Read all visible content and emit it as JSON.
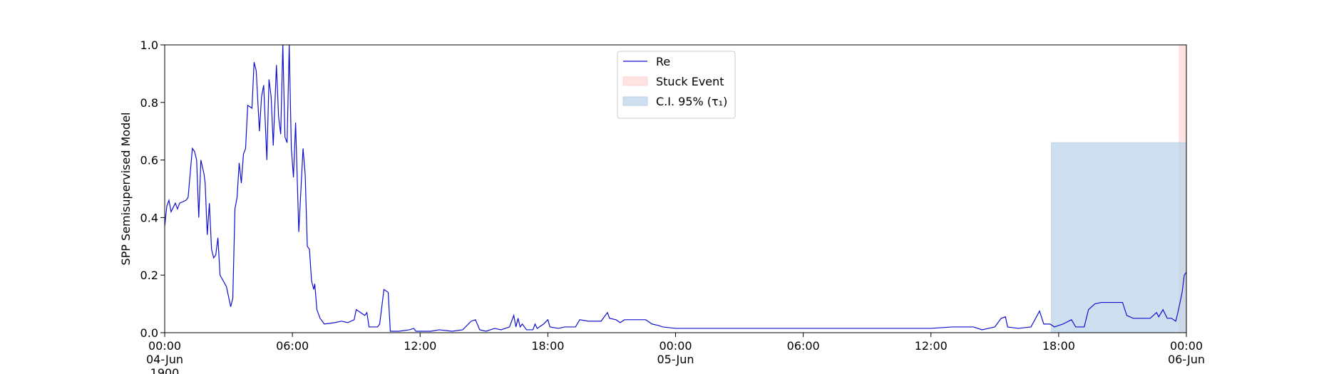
{
  "chart_data": {
    "type": "line",
    "ylabel": "SPP Semisupervised Model",
    "xlim": [
      0,
      48
    ],
    "ylim": [
      0,
      1
    ],
    "xticks": [
      {
        "value": 0,
        "label": "00:00\n04-Jun\n1900"
      },
      {
        "value": 6,
        "label": "06:00"
      },
      {
        "value": 12,
        "label": "12:00"
      },
      {
        "value": 18,
        "label": "18:00"
      },
      {
        "value": 24,
        "label": "00:00\n05-Jun"
      },
      {
        "value": 30,
        "label": "06:00"
      },
      {
        "value": 36,
        "label": "12:00"
      },
      {
        "value": 42,
        "label": "18:00"
      },
      {
        "value": 48,
        "label": "00:00\n06-Jun"
      }
    ],
    "yticks": [
      {
        "value": 0,
        "label": "0.0"
      },
      {
        "value": 0.2,
        "label": "0.2"
      },
      {
        "value": 0.4,
        "label": "0.4"
      },
      {
        "value": 0.6,
        "label": "0.6"
      },
      {
        "value": 0.8,
        "label": "0.8"
      },
      {
        "value": 1,
        "label": "1.0"
      }
    ],
    "legend": "upper center",
    "series": [
      {
        "name": "Re",
        "color": "#1010cc",
        "x": [
          0,
          0.1,
          0.2,
          0.3,
          0.5,
          0.6,
          0.7,
          1.0,
          1.1,
          1.3,
          1.4,
          1.5,
          1.6,
          1.7,
          1.85,
          1.9,
          2.0,
          2.1,
          2.2,
          2.3,
          2.4,
          2.5,
          2.6,
          2.9,
          3.1,
          3.2,
          3.3,
          3.4,
          3.5,
          3.6,
          3.7,
          3.8,
          3.9,
          4.1,
          4.2,
          4.3,
          4.45,
          4.55,
          4.65,
          4.8,
          4.9,
          5.0,
          5.1,
          5.25,
          5.35,
          5.45,
          5.55,
          5.65,
          5.75,
          5.85,
          5.95,
          6.05,
          6.15,
          6.3,
          6.45,
          6.5,
          6.6,
          6.7,
          6.8,
          6.9,
          7.0,
          7.05,
          7.15,
          7.3,
          7.5,
          8.0,
          8.3,
          8.6,
          8.9,
          9.0,
          9.3,
          9.4,
          9.5,
          9.6,
          10.0,
          10.1,
          10.3,
          10.5,
          10.6,
          11.0,
          11.5,
          11.7,
          11.8,
          12.5,
          12.9,
          13.5,
          14.0,
          14.4,
          14.6,
          14.8,
          15.1,
          15.5,
          15.8,
          16.2,
          16.4,
          16.5,
          16.6,
          16.7,
          16.8,
          17.0,
          17.3,
          17.4,
          17.5,
          17.8,
          18.0,
          18.1,
          18.5,
          18.8,
          19.3,
          19.5,
          19.9,
          20.5,
          20.8,
          20.9,
          21.2,
          21.4,
          21.6,
          22.0,
          22.6,
          22.9,
          23.2,
          23.4,
          24.0,
          30.0,
          36.0,
          37.0,
          38.0,
          38.4,
          38.7,
          39.0,
          39.3,
          39.5,
          39.6,
          40.1,
          40.7,
          41.1,
          41.3,
          41.6,
          41.8,
          42.2,
          42.6,
          42.8,
          43.2,
          43.4,
          43.7,
          44.0,
          45.0,
          45.2,
          45.5,
          46.3,
          46.6,
          46.7,
          46.9,
          47.1,
          47.3,
          47.5,
          47.6,
          47.8,
          47.9,
          48.0
        ],
        "values": [
          0.37,
          0.44,
          0.46,
          0.42,
          0.45,
          0.43,
          0.45,
          0.46,
          0.47,
          0.64,
          0.63,
          0.6,
          0.4,
          0.6,
          0.55,
          0.52,
          0.34,
          0.45,
          0.29,
          0.26,
          0.27,
          0.33,
          0.2,
          0.16,
          0.09,
          0.12,
          0.43,
          0.47,
          0.59,
          0.52,
          0.62,
          0.64,
          0.79,
          0.78,
          0.94,
          0.91,
          0.7,
          0.82,
          0.86,
          0.6,
          0.88,
          0.82,
          0.65,
          0.93,
          0.75,
          0.69,
          1.0,
          0.68,
          0.66,
          1.0,
          0.64,
          0.54,
          0.73,
          0.35,
          0.57,
          0.64,
          0.55,
          0.3,
          0.29,
          0.18,
          0.15,
          0.17,
          0.08,
          0.05,
          0.03,
          0.035,
          0.04,
          0.035,
          0.045,
          0.08,
          0.065,
          0.06,
          0.07,
          0.02,
          0.02,
          0.03,
          0.15,
          0.14,
          0.005,
          0.005,
          0.01,
          0.015,
          0.005,
          0.005,
          0.01,
          0.005,
          0.01,
          0.04,
          0.045,
          0.01,
          0.005,
          0.015,
          0.01,
          0.02,
          0.06,
          0.02,
          0.05,
          0.02,
          0.03,
          0.01,
          0.01,
          0.03,
          0.015,
          0.03,
          0.045,
          0.02,
          0.015,
          0.02,
          0.02,
          0.045,
          0.04,
          0.04,
          0.07,
          0.05,
          0.045,
          0.035,
          0.045,
          0.045,
          0.045,
          0.03,
          0.025,
          0.02,
          0.015,
          0.015,
          0.015,
          0.02,
          0.02,
          0.01,
          0.015,
          0.02,
          0.05,
          0.055,
          0.02,
          0.015,
          0.02,
          0.075,
          0.03,
          0.03,
          0.02,
          0.03,
          0.045,
          0.02,
          0.02,
          0.08,
          0.1,
          0.105,
          0.105,
          0.06,
          0.05,
          0.05,
          0.07,
          0.055,
          0.08,
          0.05,
          0.05,
          0.04,
          0.07,
          0.14,
          0.2,
          0.21
        ]
      }
    ],
    "spans": [
      {
        "name": "Stuck Event",
        "color": "#ffd6d6",
        "x": [
          47.67,
          48
        ],
        "y": [
          0,
          1
        ]
      },
      {
        "name": "C.I. 95% (τ₁)",
        "color": "#b9d3e8",
        "x": [
          41.66,
          48
        ],
        "y": [
          0,
          0.66
        ]
      }
    ]
  }
}
